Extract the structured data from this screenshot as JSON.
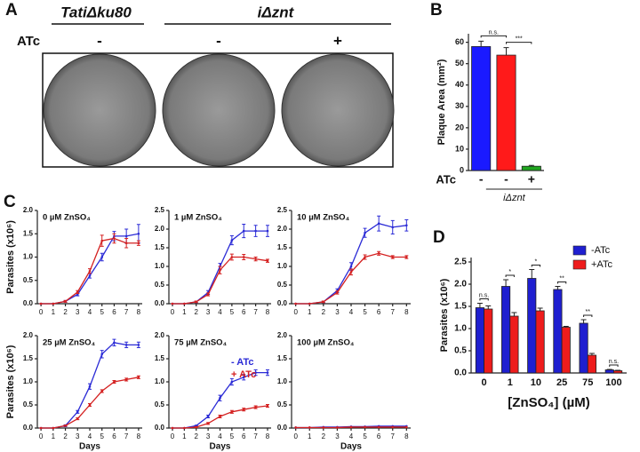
{
  "panel_labels": [
    "A",
    "B",
    "C",
    "D"
  ],
  "panel_a": {
    "strain_labels": [
      "TatiΔku80",
      "iΔznt"
    ],
    "atc_label": "ATc",
    "atc_signs": [
      "-",
      "-",
      "+"
    ]
  },
  "chart_data": [
    {
      "type": "bar",
      "y_label": "Plaque Area (mm²)",
      "x_label": "ATc",
      "categories": [
        "-",
        "-",
        "+"
      ],
      "values": [
        58,
        54,
        2
      ],
      "errors": [
        2.5,
        3.5,
        0.4
      ],
      "colors": [
        "#1a1aff",
        "#ff1a1a",
        "#1fa51f"
      ],
      "ylim": [
        0,
        64
      ],
      "yticks": [
        0,
        10,
        20,
        30,
        40,
        50,
        60
      ],
      "significance": [
        "n.s.",
        "***"
      ],
      "group_label": "iΔznt"
    },
    {
      "type": "line",
      "title": "0 µM ZnSO₄",
      "y_label": "Parasites (x10⁶)",
      "x": [
        0,
        1,
        2,
        3,
        4,
        5,
        6,
        7,
        8
      ],
      "xlim": [
        -0.3,
        8.3
      ],
      "xticks": [
        0,
        1,
        2,
        3,
        4,
        5,
        6,
        7,
        8
      ],
      "ylim": [
        0,
        2
      ],
      "yticks": [
        {
          "value": 0,
          "label": "0.0"
        },
        0.5,
        {
          "value": 1,
          "label": "1.0"
        },
        1.5,
        {
          "value": 2,
          "label": "2.0"
        }
      ],
      "series": [
        {
          "color": "#2b2bd6",
          "values": [
            0,
            0,
            0.05,
            0.2,
            0.6,
            1.0,
            1.45,
            1.45,
            1.5
          ],
          "errors": [
            0,
            0,
            0.02,
            0.03,
            0.05,
            0.08,
            0.1,
            0.15,
            0.2
          ]
        },
        {
          "color": "#d42020",
          "values": [
            0,
            0,
            0.05,
            0.25,
            0.7,
            1.35,
            1.4,
            1.3,
            1.3
          ],
          "errors": [
            0,
            0,
            0.02,
            0.03,
            0.05,
            0.12,
            0.1,
            0.1,
            0.05
          ]
        }
      ]
    },
    {
      "type": "line",
      "title": "1 µM ZnSO₄",
      "x": [
        0,
        1,
        2,
        3,
        4,
        5,
        6,
        7,
        8
      ],
      "xlim": [
        -0.3,
        8.3
      ],
      "xticks": [
        0,
        1,
        2,
        3,
        4,
        5,
        6,
        7,
        8
      ],
      "ylim": [
        0,
        2.5
      ],
      "yticks": [
        {
          "value": 0,
          "label": "0.0"
        },
        0.5,
        {
          "value": 1,
          "label": "1.0"
        },
        1.5,
        {
          "value": 2,
          "label": "2.0"
        },
        2.5
      ],
      "series": [
        {
          "color": "#2b2bd6",
          "values": [
            0,
            0,
            0.05,
            0.3,
            1.0,
            1.7,
            1.95,
            1.95,
            1.95
          ],
          "errors": [
            0,
            0,
            0.02,
            0.05,
            0.08,
            0.12,
            0.18,
            0.15,
            0.15
          ]
        },
        {
          "color": "#d42020",
          "values": [
            0,
            0,
            0.05,
            0.25,
            0.9,
            1.25,
            1.25,
            1.2,
            1.15
          ],
          "errors": [
            0,
            0,
            0.02,
            0.04,
            0.1,
            0.08,
            0.07,
            0.05,
            0.04
          ]
        }
      ]
    },
    {
      "type": "line",
      "title": "10 µM ZnSO₄",
      "x": [
        0,
        1,
        2,
        3,
        4,
        5,
        6,
        7,
        8
      ],
      "xlim": [
        -0.3,
        8.3
      ],
      "xticks": [
        0,
        1,
        2,
        3,
        4,
        5,
        6,
        7,
        8
      ],
      "ylim": [
        0,
        2.5
      ],
      "yticks": [
        {
          "value": 0,
          "label": "0.0"
        },
        0.5,
        {
          "value": 1,
          "label": "1.0"
        },
        1.5,
        {
          "value": 2,
          "label": "2.0"
        },
        2.5
      ],
      "series": [
        {
          "color": "#2b2bd6",
          "values": [
            0,
            0,
            0.05,
            0.35,
            1.0,
            1.9,
            2.15,
            2.05,
            2.1
          ],
          "errors": [
            0,
            0,
            0.02,
            0.05,
            0.1,
            0.12,
            0.2,
            0.18,
            0.15
          ]
        },
        {
          "color": "#d42020",
          "values": [
            0,
            0,
            0.05,
            0.3,
            0.85,
            1.25,
            1.35,
            1.25,
            1.25
          ],
          "errors": [
            0,
            0,
            0.02,
            0.04,
            0.08,
            0.06,
            0.05,
            0.04,
            0.04
          ]
        }
      ]
    },
    {
      "type": "line",
      "title": "25 µM ZnSO₄",
      "y_label": "Parasites (x10⁶)",
      "x_label": "Days",
      "x": [
        0,
        1,
        2,
        3,
        4,
        5,
        6,
        7,
        8
      ],
      "xlim": [
        -0.3,
        8.3
      ],
      "xticks": [
        0,
        1,
        2,
        3,
        4,
        5,
        6,
        7,
        8
      ],
      "ylim": [
        0,
        2
      ],
      "yticks": [
        {
          "value": 0,
          "label": "0.0"
        },
        0.5,
        {
          "value": 1,
          "label": "1.0"
        },
        1.5,
        {
          "value": 2,
          "label": "2.0"
        }
      ],
      "series": [
        {
          "color": "#2b2bd6",
          "values": [
            0,
            0,
            0.05,
            0.35,
            0.9,
            1.6,
            1.85,
            1.8,
            1.8
          ],
          "errors": [
            0,
            0,
            0.02,
            0.03,
            0.06,
            0.08,
            0.07,
            0.06,
            0.06
          ]
        },
        {
          "color": "#d42020",
          "values": [
            0,
            0,
            0.05,
            0.2,
            0.5,
            0.8,
            1.0,
            1.05,
            1.1
          ],
          "errors": [
            0,
            0,
            0.01,
            0.02,
            0.03,
            0.03,
            0.03,
            0.03,
            0.03
          ]
        }
      ]
    },
    {
      "type": "line",
      "title": "75 µM ZnSO₄",
      "x_label": "Days",
      "x": [
        0,
        1,
        2,
        3,
        4,
        5,
        6,
        7,
        8
      ],
      "xlim": [
        -0.3,
        8.3
      ],
      "xticks": [
        0,
        1,
        2,
        3,
        4,
        5,
        6,
        7,
        8
      ],
      "ylim": [
        0,
        2
      ],
      "yticks": [
        {
          "value": 0,
          "label": "0.0"
        },
        0.5,
        {
          "value": 1,
          "label": "1.0"
        },
        1.5,
        {
          "value": 2,
          "label": "2.0"
        }
      ],
      "series": [
        {
          "name": "- ATc",
          "color": "#2b2bd6",
          "values": [
            0,
            0,
            0.05,
            0.25,
            0.65,
            1.0,
            1.1,
            1.2,
            1.2
          ],
          "errors": [
            0,
            0,
            0.01,
            0.03,
            0.06,
            0.07,
            0.06,
            0.06,
            0.06
          ]
        },
        {
          "name": "+ ATc",
          "color": "#d42020",
          "values": [
            0,
            0,
            0.02,
            0.1,
            0.25,
            0.35,
            0.4,
            0.45,
            0.48
          ],
          "errors": [
            0,
            0,
            0.01,
            0.02,
            0.03,
            0.03,
            0.03,
            0.03,
            0.03
          ]
        }
      ]
    },
    {
      "type": "line",
      "title": "100 µM ZnSO₄",
      "x_label": "Days",
      "x": [
        0,
        1,
        2,
        3,
        4,
        5,
        6,
        7,
        8
      ],
      "xlim": [
        -0.3,
        8.3
      ],
      "xticks": [
        0,
        1,
        2,
        3,
        4,
        5,
        6,
        7,
        8
      ],
      "ylim": [
        0,
        2
      ],
      "yticks": [
        {
          "value": 0,
          "label": "0.0"
        },
        0.5,
        {
          "value": 1,
          "label": "1.0"
        },
        1.5,
        {
          "value": 2,
          "label": "2.0"
        }
      ],
      "series": [
        {
          "color": "#2b2bd6",
          "values": [
            0.01,
            0.01,
            0.02,
            0.02,
            0.03,
            0.03,
            0.04,
            0.04,
            0.04
          ]
        },
        {
          "color": "#d42020",
          "values": [
            0.01,
            0.01,
            0.01,
            0.01,
            0.02,
            0.02,
            0.02,
            0.02,
            0.02
          ]
        }
      ]
    },
    {
      "type": "bar",
      "y_label": "Parasites (x10⁶)",
      "x_label": "[ZnSO₄] (µM)",
      "categories": [
        "0",
        "1",
        "10",
        "25",
        "75",
        "100"
      ],
      "ylim": [
        0,
        2.6
      ],
      "yticks": [
        {
          "value": 0,
          "label": "0.0"
        },
        0.5,
        {
          "value": 1,
          "label": "1.0"
        },
        1.5,
        {
          "value": 2,
          "label": "2.0"
        },
        2.5
      ],
      "legend": "upper right",
      "series": [
        {
          "name": "-ATc",
          "color": "#1f1fd0",
          "values": [
            1.47,
            1.95,
            2.13,
            1.88,
            1.12,
            0.07
          ],
          "errors": [
            0.1,
            0.15,
            0.2,
            0.07,
            0.08,
            0.01
          ]
        },
        {
          "name": "+ATc",
          "color": "#ee1c1c",
          "values": [
            1.44,
            1.28,
            1.4,
            1.03,
            0.4,
            0.05
          ],
          "errors": [
            0.07,
            0.08,
            0.06,
            0.02,
            0.04,
            0.01
          ]
        }
      ],
      "significance": [
        "n.s.",
        "*",
        "*",
        "**",
        "**",
        "n.s."
      ]
    }
  ]
}
